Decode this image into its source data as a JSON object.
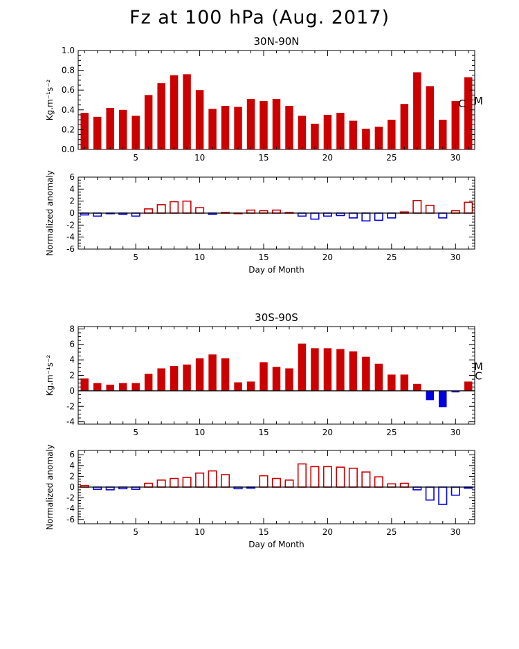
{
  "title": "Fz at 100 hPa (Aug. 2017)",
  "colors": {
    "positive": "#cc0000",
    "negative": "#0000dd"
  },
  "chart_data": [
    {
      "type": "bar",
      "title": "30N-90N",
      "ylabel": "Kg.m⁻¹s⁻²",
      "xlabel": "",
      "xlim": [
        1,
        31
      ],
      "ylim": [
        0,
        1.0
      ],
      "yticks": [
        "0.0",
        "0.2",
        "0.4",
        "0.6",
        "0.8",
        "1.0"
      ],
      "ytick_values": [
        0,
        0.2,
        0.4,
        0.6,
        0.8,
        1.0
      ],
      "xticks": [
        "5",
        "10",
        "15",
        "20",
        "25",
        "30"
      ],
      "xtick_values": [
        5,
        10,
        15,
        20,
        25,
        30
      ],
      "filled": true,
      "x": [
        1,
        2,
        3,
        4,
        5,
        6,
        7,
        8,
        9,
        10,
        11,
        12,
        13,
        14,
        15,
        16,
        17,
        18,
        19,
        20,
        21,
        22,
        23,
        24,
        25,
        26,
        27,
        28,
        29,
        30,
        31
      ],
      "values": [
        0.37,
        0.33,
        0.42,
        0.4,
        0.34,
        0.55,
        0.67,
        0.75,
        0.76,
        0.6,
        0.41,
        0.44,
        0.43,
        0.51,
        0.49,
        0.51,
        0.44,
        0.34,
        0.26,
        0.35,
        0.37,
        0.29,
        0.21,
        0.23,
        0.3,
        0.46,
        0.78,
        0.64,
        0.3,
        0.49,
        0.73
      ],
      "annotations": [
        {
          "text": "C",
          "x": 30.5,
          "y": 0.46
        },
        {
          "text": "M",
          "x": 31.8,
          "y": 0.49
        }
      ]
    },
    {
      "type": "bar",
      "title": "",
      "ylabel": "Normalized anomaly",
      "xlabel": "Day of Month",
      "xlim": [
        1,
        31
      ],
      "ylim": [
        -6,
        6
      ],
      "yticks": [
        "-6",
        "-4",
        "-2",
        "0",
        "2",
        "4",
        "6"
      ],
      "ytick_values": [
        -6,
        -4,
        -2,
        0,
        2,
        4,
        6
      ],
      "xticks": [
        "5",
        "10",
        "15",
        "20",
        "25",
        "30"
      ],
      "xtick_values": [
        5,
        10,
        15,
        20,
        25,
        30
      ],
      "filled": false,
      "x": [
        1,
        2,
        3,
        4,
        5,
        6,
        7,
        8,
        9,
        10,
        11,
        12,
        13,
        14,
        15,
        16,
        17,
        18,
        19,
        20,
        21,
        22,
        23,
        24,
        25,
        26,
        27,
        28,
        29,
        30,
        31
      ],
      "values": [
        -0.3,
        -0.5,
        -0.1,
        -0.2,
        -0.5,
        0.7,
        1.4,
        1.9,
        2.0,
        0.9,
        -0.2,
        0.1,
        0.0,
        0.5,
        0.4,
        0.5,
        0.1,
        -0.5,
        -1.0,
        -0.5,
        -0.4,
        -0.8,
        -1.3,
        -1.2,
        -0.8,
        0.2,
        2.1,
        1.3,
        -0.8,
        0.4,
        1.8
      ]
    },
    {
      "type": "bar",
      "title": "30S-90S",
      "ylabel": "Kg.m⁻¹s⁻²",
      "xlabel": "",
      "xlim": [
        1,
        31
      ],
      "ylim": [
        -4.3,
        8.3
      ],
      "yticks": [
        "-4",
        "-2",
        "0",
        "2",
        "4",
        "6",
        "8"
      ],
      "ytick_values": [
        -4,
        -2,
        0,
        2,
        4,
        6,
        8
      ],
      "xticks": [
        "5",
        "10",
        "15",
        "20",
        "25",
        "30"
      ],
      "xtick_values": [
        5,
        10,
        15,
        20,
        25,
        30
      ],
      "filled": true,
      "x": [
        1,
        2,
        3,
        4,
        5,
        6,
        7,
        8,
        9,
        10,
        11,
        12,
        13,
        14,
        15,
        16,
        17,
        18,
        19,
        20,
        21,
        22,
        23,
        24,
        25,
        26,
        27,
        28,
        29,
        30,
        31
      ],
      "values": [
        1.6,
        1.0,
        0.8,
        1.0,
        1.0,
        2.2,
        2.9,
        3.2,
        3.4,
        4.2,
        4.7,
        4.2,
        1.1,
        1.2,
        3.7,
        3.1,
        2.9,
        6.1,
        5.5,
        5.5,
        5.4,
        5.1,
        4.4,
        3.5,
        2.1,
        2.1,
        0.9,
        -1.2,
        -2.1,
        -0.2,
        1.2
      ],
      "annotations": [
        {
          "text": "M",
          "x": 31.8,
          "y": 3.1
        },
        {
          "text": "C",
          "x": 31.8,
          "y": 1.9
        }
      ]
    },
    {
      "type": "bar",
      "title": "",
      "ylabel": "Normalized anomaly",
      "xlabel": "Day of Month",
      "xlim": [
        1,
        31
      ],
      "ylim": [
        -6.8,
        6.8
      ],
      "yticks": [
        "-6",
        "-4",
        "-2",
        "0",
        "2",
        "4",
        "6"
      ],
      "ytick_values": [
        -6,
        -4,
        -2,
        0,
        2,
        4,
        6
      ],
      "xticks": [
        "5",
        "10",
        "15",
        "20",
        "25",
        "30"
      ],
      "xtick_values": [
        5,
        10,
        15,
        20,
        25,
        30
      ],
      "filled": false,
      "x": [
        1,
        2,
        3,
        4,
        5,
        6,
        7,
        8,
        9,
        10,
        11,
        12,
        13,
        14,
        15,
        16,
        17,
        18,
        19,
        20,
        21,
        22,
        23,
        24,
        25,
        26,
        27,
        28,
        29,
        30,
        31
      ],
      "values": [
        0.3,
        -0.4,
        -0.5,
        -0.3,
        -0.4,
        0.7,
        1.3,
        1.6,
        1.8,
        2.6,
        3.0,
        2.3,
        -0.3,
        -0.2,
        2.1,
        1.6,
        1.3,
        4.3,
        3.8,
        3.8,
        3.7,
        3.5,
        2.8,
        1.9,
        0.6,
        0.7,
        -0.5,
        -2.4,
        -3.2,
        -1.5,
        -0.2
      ]
    }
  ]
}
